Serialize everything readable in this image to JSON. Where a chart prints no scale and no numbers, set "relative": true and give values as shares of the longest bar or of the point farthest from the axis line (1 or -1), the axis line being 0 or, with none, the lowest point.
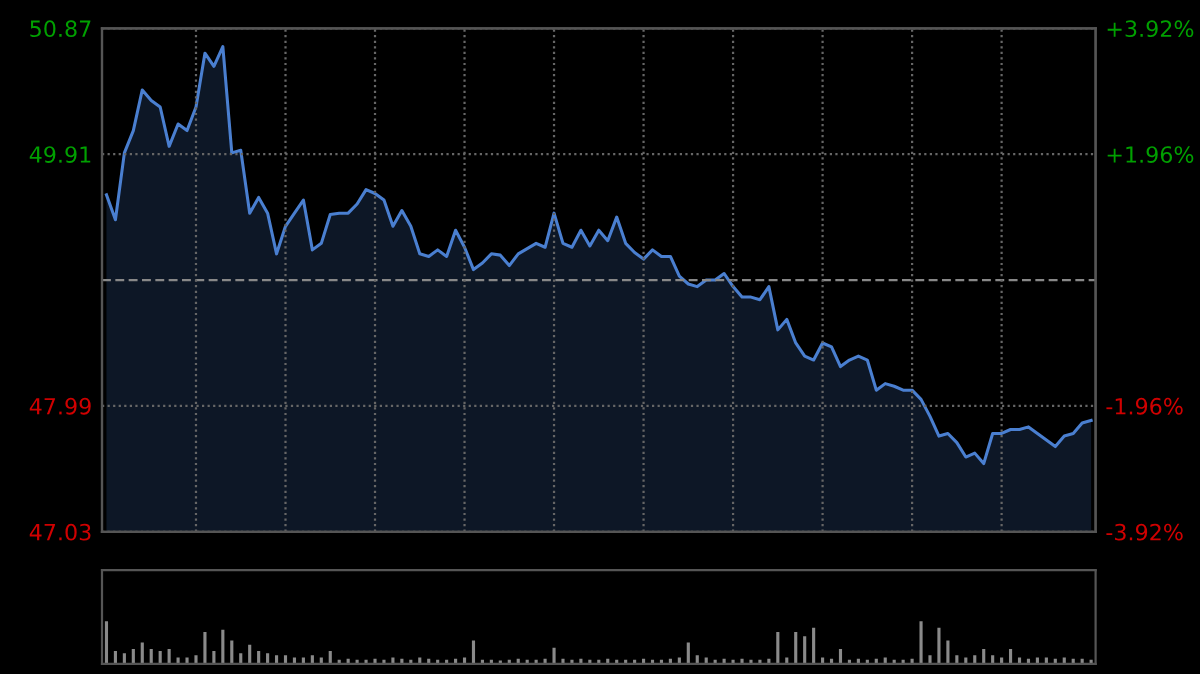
{
  "chart_data": [
    {
      "type": "area",
      "categories": [
        null,
        null,
        null,
        null,
        null,
        null,
        null,
        null,
        null,
        null,
        null,
        null,
        null,
        null,
        null,
        null,
        null,
        null,
        null,
        null,
        null,
        null,
        null,
        null,
        null,
        null,
        null,
        null,
        null,
        null,
        null,
        null,
        null,
        null,
        null,
        null,
        null,
        null,
        null,
        null,
        null,
        null,
        null,
        null,
        null,
        null,
        null,
        null,
        null,
        null,
        null,
        null,
        null,
        null,
        null,
        null,
        null,
        null,
        null,
        null,
        null,
        null,
        null,
        null,
        null,
        null,
        null,
        null,
        null,
        null,
        null,
        null,
        null,
        null,
        null,
        null,
        null,
        null,
        null,
        null,
        null,
        null,
        null,
        null,
        null,
        null,
        null,
        null,
        null,
        null,
        null,
        null,
        null,
        null,
        null,
        null,
        null,
        null,
        null,
        null,
        null,
        null,
        null,
        null,
        null,
        null,
        null,
        null,
        null,
        null,
        null
      ],
      "series": [
        {
          "color": "#4a7fd0",
          "values": [
            49.6,
            49.41,
            49.92,
            50.09,
            50.4,
            50.32,
            50.27,
            49.97,
            50.14,
            50.09,
            50.27,
            50.68,
            50.58,
            50.73,
            49.92,
            49.94,
            49.46,
            49.58,
            49.46,
            49.15,
            49.36,
            49.46,
            49.56,
            49.18,
            49.23,
            49.45,
            49.46,
            49.46,
            49.53,
            49.64,
            49.61,
            49.56,
            49.36,
            49.48,
            49.36,
            49.15,
            49.13,
            49.18,
            49.13,
            49.33,
            49.2,
            49.03,
            49.08,
            49.15,
            49.14,
            49.06,
            49.15,
            49.19,
            49.23,
            49.2,
            49.46,
            49.23,
            49.2,
            49.33,
            49.21,
            49.33,
            49.25,
            49.43,
            49.23,
            49.16,
            49.11,
            49.18,
            49.13,
            49.13,
            48.98,
            48.92,
            48.9,
            48.95,
            48.95,
            49.0,
            48.9,
            48.82,
            48.82,
            48.8,
            48.9,
            48.57,
            48.65,
            48.47,
            48.37,
            48.34,
            48.47,
            48.44,
            48.29,
            48.34,
            48.37,
            48.34,
            48.11,
            48.16,
            48.14,
            48.11,
            48.11,
            48.04,
            47.91,
            47.76,
            47.78,
            47.71,
            47.6,
            47.63,
            47.55,
            47.78,
            47.78,
            47.81,
            47.81,
            47.83,
            47.78,
            47.73,
            47.68,
            47.76,
            47.78,
            47.86,
            47.88
          ]
        }
      ],
      "ylim": [
        47.03,
        50.87
      ],
      "yticks": [
        47.03,
        47.99,
        49.91,
        50.87
      ],
      "y2lim": [
        -3.92,
        3.92
      ],
      "y2ticks": [
        {
          "value": -3.92,
          "label": "-3.92%"
        },
        {
          "value": -1.96,
          "label": "-1.96%"
        },
        {
          "value": 1.96,
          "label": "+1.96%"
        },
        {
          "value": 3.92,
          "label": "+3.92%"
        }
      ],
      "ref_lines": [
        {
          "axis": "y",
          "value": 48.95,
          "color": "#888888",
          "line_style": "dashed"
        }
      ],
      "grid": true,
      "tick_labels": "y"
    },
    {
      "type": "bar",
      "relative": true,
      "color": "#8a8a8a",
      "tick_labels": false,
      "categories": [
        null,
        null,
        null,
        null,
        null,
        null,
        null,
        null,
        null,
        null,
        null,
        null,
        null,
        null,
        null,
        null,
        null,
        null,
        null,
        null,
        null,
        null,
        null,
        null,
        null,
        null,
        null,
        null,
        null,
        null,
        null,
        null,
        null,
        null,
        null,
        null,
        null,
        null,
        null,
        null,
        null,
        null,
        null,
        null,
        null,
        null,
        null,
        null,
        null,
        null,
        null,
        null,
        null,
        null,
        null,
        null,
        null,
        null,
        null,
        null,
        null,
        null,
        null,
        null,
        null,
        null,
        null,
        null,
        null,
        null,
        null,
        null,
        null,
        null,
        null,
        null,
        null,
        null,
        null,
        null,
        null,
        null,
        null,
        null,
        null,
        null,
        null,
        null,
        null,
        null,
        null,
        null,
        null,
        null,
        null,
        null,
        null,
        null,
        null,
        null,
        null,
        null,
        null,
        null,
        null,
        null,
        null,
        null,
        null,
        null,
        null
      ],
      "values": [
        1.0,
        0.3,
        0.25,
        0.35,
        0.5,
        0.35,
        0.3,
        0.35,
        0.15,
        0.15,
        0.2,
        0.75,
        0.3,
        0.8,
        0.55,
        0.25,
        0.45,
        0.3,
        0.25,
        0.2,
        0.2,
        0.15,
        0.15,
        0.2,
        0.15,
        0.3,
        0.1,
        0.12,
        0.1,
        0.1,
        0.12,
        0.1,
        0.15,
        0.12,
        0.1,
        0.15,
        0.12,
        0.1,
        0.1,
        0.12,
        0.15,
        0.55,
        0.1,
        0.1,
        0.08,
        0.1,
        0.12,
        0.1,
        0.1,
        0.12,
        0.38,
        0.12,
        0.1,
        0.12,
        0.1,
        0.1,
        0.12,
        0.1,
        0.1,
        0.1,
        0.12,
        0.1,
        0.1,
        0.12,
        0.15,
        0.5,
        0.2,
        0.15,
        0.1,
        0.12,
        0.1,
        0.12,
        0.1,
        0.1,
        0.12,
        0.75,
        0.15,
        0.75,
        0.65,
        0.85,
        0.15,
        0.12,
        0.35,
        0.1,
        0.12,
        0.1,
        0.12,
        0.15,
        0.1,
        0.1,
        0.12,
        1.0,
        0.2,
        0.85,
        0.55,
        0.2,
        0.15,
        0.2,
        0.35,
        0.2,
        0.15,
        0.35,
        0.15,
        0.12,
        0.15,
        0.15,
        0.12,
        0.15,
        0.12,
        0.12,
        0.1
      ]
    }
  ]
}
